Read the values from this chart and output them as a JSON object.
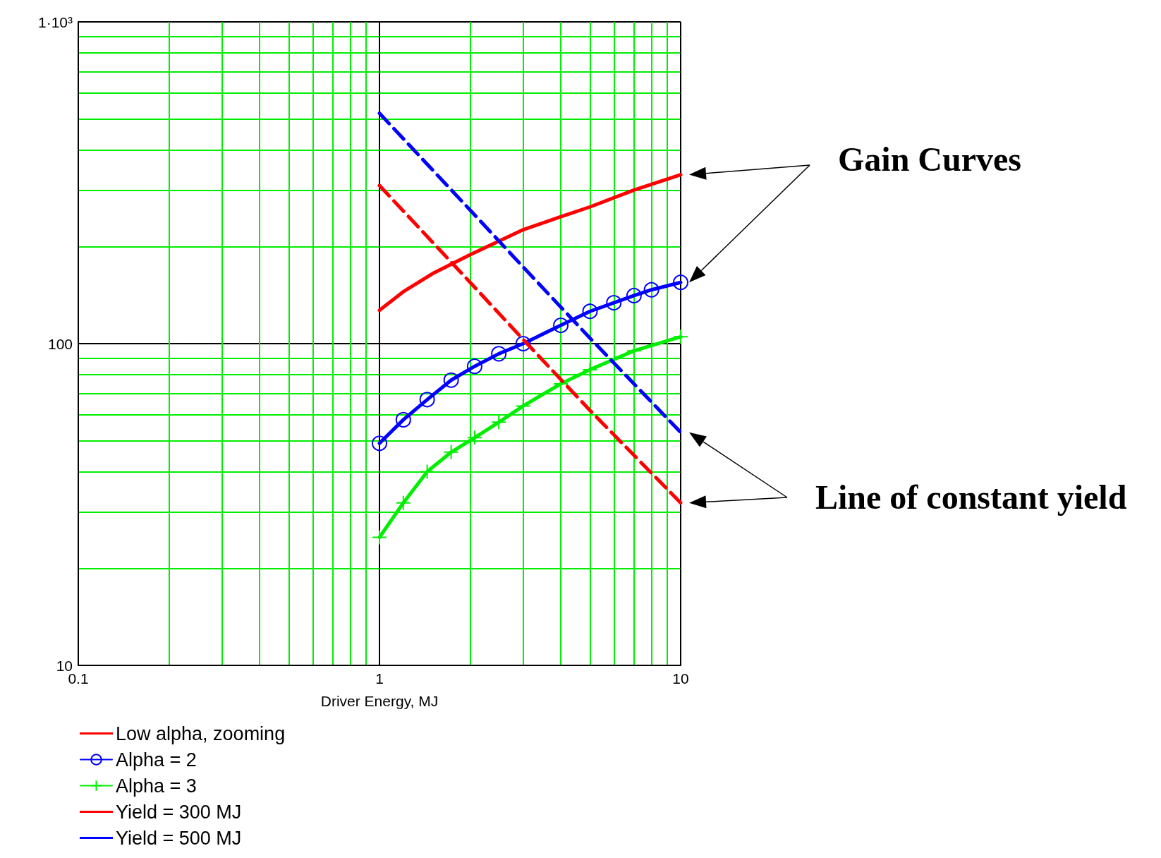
{
  "chart_data": {
    "type": "line",
    "xlabel": "Driver Energy, MJ",
    "log": "xy",
    "grid": true,
    "legend": "bottom left",
    "xlim": [
      0.1,
      10
    ],
    "xticks": [
      0.1,
      {
        "value": 0.2,
        "label": null
      },
      {
        "value": 0.3,
        "label": null
      },
      {
        "value": 0.4,
        "label": null
      },
      {
        "value": 0.5,
        "label": null
      },
      {
        "value": 0.6,
        "label": null
      },
      {
        "value": 0.7,
        "label": null
      },
      {
        "value": 0.8,
        "label": null
      },
      {
        "value": 0.9,
        "label": null
      },
      1,
      {
        "value": 2,
        "label": null
      },
      {
        "value": 3,
        "label": null
      },
      {
        "value": 4,
        "label": null
      },
      {
        "value": 5,
        "label": null
      },
      {
        "value": 6,
        "label": null
      },
      {
        "value": 7,
        "label": null
      },
      {
        "value": 8,
        "label": null
      },
      {
        "value": 9,
        "label": null
      },
      10
    ],
    "ylim": [
      10,
      1000
    ],
    "yticks": [
      10,
      {
        "value": 20,
        "label": null
      },
      {
        "value": 30,
        "label": null
      },
      {
        "value": 40,
        "label": null
      },
      {
        "value": 50,
        "label": null
      },
      {
        "value": 60,
        "label": null
      },
      {
        "value": 70,
        "label": null
      },
      {
        "value": 80,
        "label": null
      },
      {
        "value": 90,
        "label": null
      },
      100,
      {
        "value": 200,
        "label": null
      },
      {
        "value": 300,
        "label": null
      },
      {
        "value": 400,
        "label": null
      },
      {
        "value": 500,
        "label": null
      },
      {
        "value": 600,
        "label": null
      },
      {
        "value": 700,
        "label": null
      },
      {
        "value": 800,
        "label": null
      },
      {
        "value": 900,
        "label": null
      },
      {
        "value": 1000,
        "label": "1·10³"
      }
    ],
    "annotations": [
      "Gain Curves",
      "Line of constant yield"
    ],
    "series": [
      {
        "name": "Low alpha, zooming",
        "color": "#ff0000",
        "line_style": "solid",
        "marker": "none",
        "x": [
          1,
          1.2,
          1.5,
          2,
          3,
          4,
          5,
          7,
          10
        ],
        "values": [
          127,
          145,
          165,
          189,
          226,
          248,
          266,
          300,
          335
        ]
      },
      {
        "name": "Alpha = 2",
        "color": "#0000ff",
        "line_style": "solid",
        "marker": "circle",
        "x": [
          1,
          1.2,
          1.44,
          1.73,
          2.07,
          2.49,
          3,
          4,
          5,
          6,
          7,
          8,
          10
        ],
        "values": [
          49,
          58,
          67,
          77,
          85,
          93,
          100,
          114,
          126,
          134,
          141,
          147,
          155
        ]
      },
      {
        "name": "Alpha = 3",
        "color": "#00ee00",
        "line_style": "solid",
        "marker": "cross",
        "x": [
          1,
          1.2,
          1.44,
          1.73,
          2.07,
          2.49,
          3,
          4,
          5,
          7,
          10
        ],
        "values": [
          25,
          32,
          40,
          46,
          51,
          57,
          64,
          75,
          83,
          95,
          105
        ]
      },
      {
        "name": "Yield = 300 MJ",
        "color": "#ff0000",
        "line_style": "dashed",
        "marker": "none",
        "x": [
          1,
          2,
          3,
          5,
          10
        ],
        "values": [
          310,
          155,
          103,
          62,
          32
        ]
      },
      {
        "name": "Yield = 500 MJ",
        "color": "#0000ff",
        "line_style": "dashed",
        "marker": "none",
        "x": [
          1,
          2,
          3,
          5,
          10
        ],
        "values": [
          520,
          260,
          173,
          104,
          53
        ]
      }
    ]
  }
}
